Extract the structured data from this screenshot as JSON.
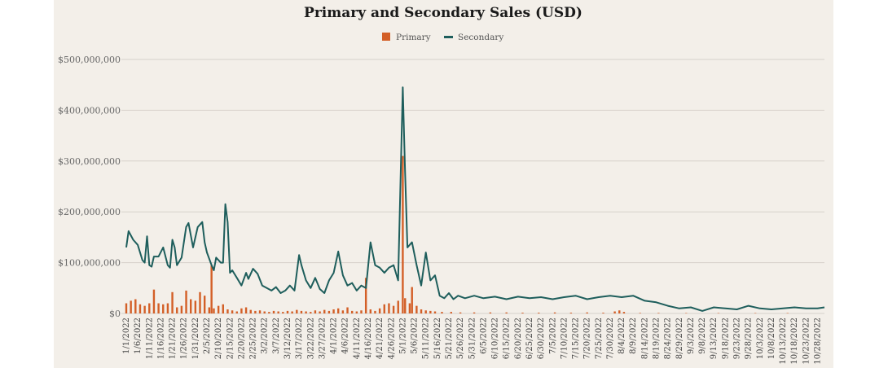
{
  "chart_data": {
    "type": "bar+line",
    "title": "Primary and Secondary Sales (USD)",
    "xlabel": "",
    "ylabel": "",
    "ylim": [
      0,
      500000000
    ],
    "y_ticks": [
      0,
      100000000,
      200000000,
      300000000,
      400000000,
      500000000
    ],
    "y_tick_labels": [
      "$0",
      "$100,000,000",
      "$200,000,000",
      "$300,000,000",
      "$400,000,000",
      "$500,000,000"
    ],
    "x_range": [
      "2022-01-01",
      "2022-10-31"
    ],
    "x_tick_labels": [
      "1/1/2022",
      "1/6/2022",
      "1/11/2022",
      "1/16/2022",
      "1/21/2022",
      "1/26/2022",
      "1/31/2022",
      "2/5/2022",
      "2/10/2022",
      "2/15/2022",
      "2/20/2022",
      "2/25/2022",
      "3/2/2022",
      "3/7/2022",
      "3/12/2022",
      "3/17/2022",
      "3/22/2022",
      "3/27/2022",
      "4/1/2022",
      "4/6/2022",
      "4/11/2022",
      "4/16/2022",
      "4/21/2022",
      "4/26/2022",
      "5/1/2022",
      "5/6/2022",
      "5/11/2022",
      "5/16/2022",
      "5/21/2022",
      "5/26/2022",
      "5/31/2022",
      "6/5/2022",
      "6/10/2022",
      "6/15/2022",
      "6/20/2022",
      "6/25/2022",
      "6/30/2022",
      "7/5/2022",
      "7/10/2022",
      "7/15/2022",
      "7/20/2022",
      "7/25/2022",
      "7/30/2022",
      "8/4/2022",
      "8/9/2022",
      "8/14/2022",
      "8/19/2022",
      "8/24/2022",
      "8/29/2022",
      "9/3/2022",
      "9/8/2022",
      "9/13/2022",
      "9/18/2022",
      "9/23/2022",
      "9/28/2022",
      "10/3/2022",
      "10/8/2022",
      "10/13/2022",
      "10/18/2022",
      "10/23/2022",
      "10/28/2022"
    ],
    "grid": true,
    "legend_position": "top-center",
    "series": [
      {
        "name": "Primary",
        "type": "bar",
        "color": "#d35f27",
        "points": [
          [
            "1/1/2022",
            20000000
          ],
          [
            "1/3/2022",
            25000000
          ],
          [
            "1/5/2022",
            28000000
          ],
          [
            "1/7/2022",
            18000000
          ],
          [
            "1/9/2022",
            15000000
          ],
          [
            "1/11/2022",
            20000000
          ],
          [
            "1/13/2022",
            47000000
          ],
          [
            "1/15/2022",
            20000000
          ],
          [
            "1/17/2022",
            18000000
          ],
          [
            "1/19/2022",
            20000000
          ],
          [
            "1/21/2022",
            42000000
          ],
          [
            "1/23/2022",
            12000000
          ],
          [
            "1/25/2022",
            15000000
          ],
          [
            "1/27/2022",
            45000000
          ],
          [
            "1/29/2022",
            28000000
          ],
          [
            "1/31/2022",
            25000000
          ],
          [
            "2/2/2022",
            42000000
          ],
          [
            "2/4/2022",
            35000000
          ],
          [
            "2/6/2022",
            12000000
          ],
          [
            "2/7/2022",
            95000000
          ],
          [
            "2/8/2022",
            10000000
          ],
          [
            "2/10/2022",
            15000000
          ],
          [
            "2/12/2022",
            18000000
          ],
          [
            "2/14/2022",
            8000000
          ],
          [
            "2/16/2022",
            6000000
          ],
          [
            "2/18/2022",
            4000000
          ],
          [
            "2/20/2022",
            10000000
          ],
          [
            "2/22/2022",
            12000000
          ],
          [
            "2/24/2022",
            7000000
          ],
          [
            "2/26/2022",
            5000000
          ],
          [
            "2/28/2022",
            6000000
          ],
          [
            "3/2/2022",
            4000000
          ],
          [
            "3/4/2022",
            3000000
          ],
          [
            "3/6/2022",
            5000000
          ],
          [
            "3/8/2022",
            4000000
          ],
          [
            "3/10/2022",
            3000000
          ],
          [
            "3/12/2022",
            5000000
          ],
          [
            "3/14/2022",
            4000000
          ],
          [
            "3/16/2022",
            7000000
          ],
          [
            "3/18/2022",
            5000000
          ],
          [
            "3/20/2022",
            4000000
          ],
          [
            "3/22/2022",
            3000000
          ],
          [
            "3/24/2022",
            6000000
          ],
          [
            "3/26/2022",
            4000000
          ],
          [
            "3/28/2022",
            7000000
          ],
          [
            "3/30/2022",
            5000000
          ],
          [
            "4/1/2022",
            8000000
          ],
          [
            "4/3/2022",
            10000000
          ],
          [
            "4/5/2022",
            6000000
          ],
          [
            "4/7/2022",
            12000000
          ],
          [
            "4/9/2022",
            5000000
          ],
          [
            "4/11/2022",
            4000000
          ],
          [
            "4/13/2022",
            6000000
          ],
          [
            "4/15/2022",
            70000000
          ],
          [
            "4/17/2022",
            8000000
          ],
          [
            "4/19/2022",
            5000000
          ],
          [
            "4/21/2022",
            10000000
          ],
          [
            "4/23/2022",
            18000000
          ],
          [
            "4/25/2022",
            20000000
          ],
          [
            "4/27/2022",
            15000000
          ],
          [
            "4/29/2022",
            25000000
          ],
          [
            "5/1/2022",
            310000000
          ],
          [
            "5/2/2022",
            30000000
          ],
          [
            "5/4/2022",
            20000000
          ],
          [
            "5/5/2022",
            52000000
          ],
          [
            "5/7/2022",
            15000000
          ],
          [
            "5/9/2022",
            8000000
          ],
          [
            "5/11/2022",
            6000000
          ],
          [
            "5/13/2022",
            5000000
          ],
          [
            "5/15/2022",
            4000000
          ],
          [
            "5/18/2022",
            3000000
          ],
          [
            "5/22/2022",
            3000000
          ],
          [
            "5/26/2022",
            2000000
          ],
          [
            "6/1/2022",
            2000000
          ],
          [
            "6/8/2022",
            2000000
          ],
          [
            "6/15/2022",
            2000000
          ],
          [
            "6/22/2022",
            1500000
          ],
          [
            "6/29/2022",
            1500000
          ],
          [
            "7/6/2022",
            2000000
          ],
          [
            "7/13/2022",
            1500000
          ],
          [
            "7/20/2022",
            2000000
          ],
          [
            "7/27/2022",
            1500000
          ],
          [
            "8/1/2022",
            4000000
          ],
          [
            "8/3/2022",
            6000000
          ],
          [
            "8/5/2022",
            3000000
          ],
          [
            "8/12/2022",
            1000000
          ],
          [
            "8/20/2022",
            1000000
          ],
          [
            "9/1/2022",
            800000
          ],
          [
            "9/15/2022",
            800000
          ],
          [
            "10/1/2022",
            800000
          ],
          [
            "10/15/2022",
            800000
          ]
        ]
      },
      {
        "name": "Secondary",
        "type": "line",
        "color": "#1e5e5c",
        "points": [
          [
            "1/1/2022",
            130000000
          ],
          [
            "1/2/2022",
            162000000
          ],
          [
            "1/4/2022",
            145000000
          ],
          [
            "1/6/2022",
            135000000
          ],
          [
            "1/8/2022",
            105000000
          ],
          [
            "1/9/2022",
            100000000
          ],
          [
            "1/10/2022",
            152000000
          ],
          [
            "1/11/2022",
            95000000
          ],
          [
            "1/12/2022",
            92000000
          ],
          [
            "1/13/2022",
            112000000
          ],
          [
            "1/15/2022",
            112000000
          ],
          [
            "1/17/2022",
            130000000
          ],
          [
            "1/19/2022",
            95000000
          ],
          [
            "1/20/2022",
            90000000
          ],
          [
            "1/21/2022",
            145000000
          ],
          [
            "1/22/2022",
            130000000
          ],
          [
            "1/23/2022",
            95000000
          ],
          [
            "1/25/2022",
            110000000
          ],
          [
            "1/27/2022",
            170000000
          ],
          [
            "1/28/2022",
            178000000
          ],
          [
            "1/30/2022",
            130000000
          ],
          [
            "2/1/2022",
            170000000
          ],
          [
            "2/3/2022",
            180000000
          ],
          [
            "2/4/2022",
            140000000
          ],
          [
            "2/5/2022",
            120000000
          ],
          [
            "2/7/2022",
            95000000
          ],
          [
            "2/8/2022",
            85000000
          ],
          [
            "2/9/2022",
            110000000
          ],
          [
            "2/11/2022",
            100000000
          ],
          [
            "2/12/2022",
            100000000
          ],
          [
            "2/13/2022",
            215000000
          ],
          [
            "2/14/2022",
            180000000
          ],
          [
            "2/15/2022",
            80000000
          ],
          [
            "2/16/2022",
            85000000
          ],
          [
            "2/18/2022",
            70000000
          ],
          [
            "2/20/2022",
            55000000
          ],
          [
            "2/22/2022",
            80000000
          ],
          [
            "2/23/2022",
            68000000
          ],
          [
            "2/25/2022",
            88000000
          ],
          [
            "2/27/2022",
            78000000
          ],
          [
            "3/1/2022",
            55000000
          ],
          [
            "3/3/2022",
            50000000
          ],
          [
            "3/5/2022",
            45000000
          ],
          [
            "3/7/2022",
            52000000
          ],
          [
            "3/9/2022",
            40000000
          ],
          [
            "3/11/2022",
            45000000
          ],
          [
            "3/13/2022",
            55000000
          ],
          [
            "3/15/2022",
            45000000
          ],
          [
            "3/17/2022",
            115000000
          ],
          [
            "3/18/2022",
            95000000
          ],
          [
            "3/20/2022",
            65000000
          ],
          [
            "3/22/2022",
            50000000
          ],
          [
            "3/24/2022",
            70000000
          ],
          [
            "3/26/2022",
            48000000
          ],
          [
            "3/28/2022",
            40000000
          ],
          [
            "3/30/2022",
            65000000
          ],
          [
            "4/1/2022",
            80000000
          ],
          [
            "4/3/2022",
            122000000
          ],
          [
            "4/5/2022",
            75000000
          ],
          [
            "4/7/2022",
            55000000
          ],
          [
            "4/9/2022",
            60000000
          ],
          [
            "4/11/2022",
            45000000
          ],
          [
            "4/13/2022",
            55000000
          ],
          [
            "4/15/2022",
            50000000
          ],
          [
            "4/17/2022",
            140000000
          ],
          [
            "4/19/2022",
            95000000
          ],
          [
            "4/21/2022",
            90000000
          ],
          [
            "4/23/2022",
            80000000
          ],
          [
            "4/25/2022",
            90000000
          ],
          [
            "4/27/2022",
            95000000
          ],
          [
            "4/29/2022",
            65000000
          ],
          [
            "5/1/2022",
            445000000
          ],
          [
            "5/2/2022",
            280000000
          ],
          [
            "5/3/2022",
            130000000
          ],
          [
            "5/5/2022",
            140000000
          ],
          [
            "5/7/2022",
            95000000
          ],
          [
            "5/9/2022",
            55000000
          ],
          [
            "5/11/2022",
            120000000
          ],
          [
            "5/13/2022",
            65000000
          ],
          [
            "5/15/2022",
            75000000
          ],
          [
            "5/17/2022",
            35000000
          ],
          [
            "5/19/2022",
            30000000
          ],
          [
            "5/21/2022",
            40000000
          ],
          [
            "5/23/2022",
            28000000
          ],
          [
            "5/25/2022",
            35000000
          ],
          [
            "5/28/2022",
            30000000
          ],
          [
            "6/1/2022",
            35000000
          ],
          [
            "6/5/2022",
            30000000
          ],
          [
            "6/10/2022",
            33000000
          ],
          [
            "6/15/2022",
            28000000
          ],
          [
            "6/20/2022",
            33000000
          ],
          [
            "6/25/2022",
            30000000
          ],
          [
            "6/30/2022",
            32000000
          ],
          [
            "7/5/2022",
            28000000
          ],
          [
            "7/10/2022",
            32000000
          ],
          [
            "7/15/2022",
            35000000
          ],
          [
            "7/20/2022",
            28000000
          ],
          [
            "7/25/2022",
            32000000
          ],
          [
            "7/30/2022",
            35000000
          ],
          [
            "8/4/2022",
            32000000
          ],
          [
            "8/9/2022",
            35000000
          ],
          [
            "8/14/2022",
            25000000
          ],
          [
            "8/19/2022",
            22000000
          ],
          [
            "8/24/2022",
            15000000
          ],
          [
            "8/29/2022",
            10000000
          ],
          [
            "9/3/2022",
            12000000
          ],
          [
            "9/8/2022",
            5000000
          ],
          [
            "9/13/2022",
            12000000
          ],
          [
            "9/18/2022",
            10000000
          ],
          [
            "9/23/2022",
            8000000
          ],
          [
            "9/28/2022",
            15000000
          ],
          [
            "10/3/2022",
            10000000
          ],
          [
            "10/8/2022",
            8000000
          ],
          [
            "10/13/2022",
            10000000
          ],
          [
            "10/18/2022",
            12000000
          ],
          [
            "10/23/2022",
            10000000
          ],
          [
            "10/28/2022",
            10000000
          ],
          [
            "10/31/2022",
            12000000
          ]
        ]
      }
    ]
  }
}
